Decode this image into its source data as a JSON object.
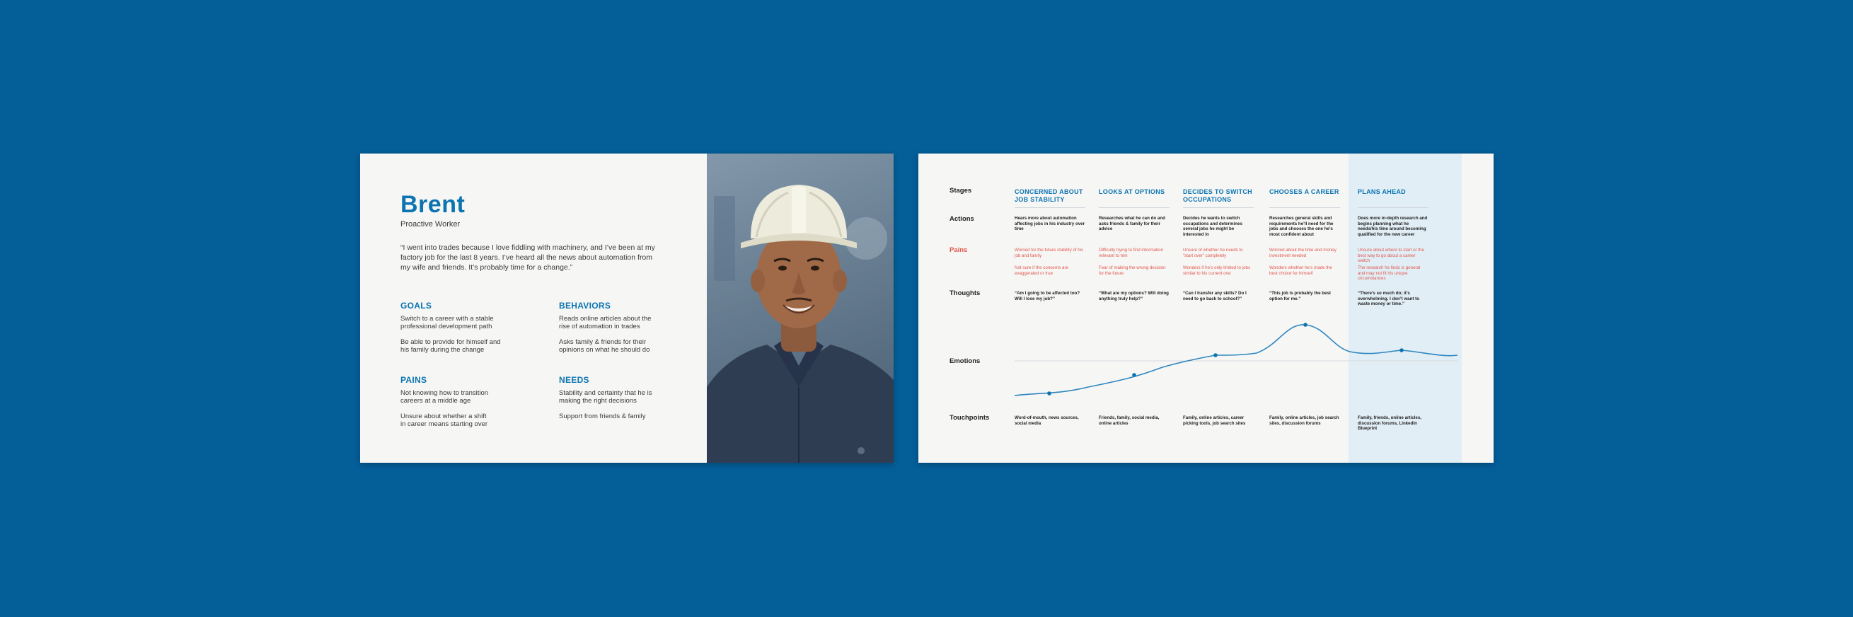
{
  "persona": {
    "name": "Brent",
    "role": "Proactive Worker",
    "quote": "“I went into trades because I love fiddling with machinery, and I’ve been at my factory job for the last 8 years. I’ve heard all the news about automation from my wife and friends. It’s probably time for a change.”",
    "goals": {
      "title": "GOALS",
      "items": [
        "Switch to a career with a stable\nprofessional development path",
        "Be able to provide for himself and\nhis family during the change"
      ]
    },
    "behaviors": {
      "title": "BEHAVIORS",
      "items": [
        "Reads online articles about the\nrise of automation in trades",
        "Asks family & friends for their\nopinions on what he should do"
      ]
    },
    "pains": {
      "title": "PAINS",
      "items": [
        "Not knowing how to transition\ncareers at a middle age",
        "Unsure about whether a shift\nin career means starting over"
      ]
    },
    "needs": {
      "title": "NEEDS",
      "items": [
        "Stability and certainty that he is\nmaking the right decisions",
        "Support from friends & family"
      ]
    },
    "photo_icon": "person-hardhat-photo"
  },
  "journey": {
    "row_labels": {
      "stages": "Stages",
      "actions": "Actions",
      "pains": "Pains",
      "thoughts": "Thoughts",
      "emotions": "Emotions",
      "touchpoints": "Touchpoints"
    },
    "highlight_color": "#e1eef6",
    "accent_color": "#0b74b1",
    "pain_color": "#e2574c",
    "stages": [
      {
        "title": "CONCERNED ABOUT JOB STABILITY",
        "action": "Hears more about automation affecting jobs in his industry over time",
        "pain1": "Worried for the future stability of his job and family",
        "pain2": "Not sure if the concerns are exaggerated or true",
        "thought": "“Am I going to be affected too? Will I lose my job?”",
        "touchpoint": "Word-of-mouth, news sources, social media"
      },
      {
        "title": "LOOKS AT OPTIONS",
        "action": "Researches what he can do and asks friends & family for their advice",
        "pain1": "Difficulty trying to find information relevant to him",
        "pain2": "Fear of making the wrong decision for the future",
        "thought": "“What are my options? Will doing anything truly help?”",
        "touchpoint": "Friends, family, social media, online articles"
      },
      {
        "title": "DECIDES TO SWITCH OCCUPATIONS",
        "action": "Decides he wants to switch occupations and determines several jobs he might be interested in",
        "pain1": "Unsure of whether he needs to “start over” completely",
        "pain2": "Wonders if he’s only limited to jobs similar to his current one",
        "thought": "“Can I transfer any skills? Do I need to go back to school?”",
        "touchpoint": "Family, online articles, career picking tools, job search sites"
      },
      {
        "title": "CHOOSES  A CAREER",
        "action": "Researches general skills and requirements he’ll need for the jobs and chooses the one he’s most confident about",
        "pain1": "Worried about the time and money investment needed",
        "pain2": "Wonders whether he’s made the best choice for himself",
        "thought": "“This job is probably the best option for me.”",
        "touchpoint": "Family, online articles, job search sites, discussion forums"
      },
      {
        "title": "PLANS AHEAD",
        "action": "Does more in-depth research and begins planning what he needs/his time around becoming qualified for the new career",
        "pain1": "Unsure about where to start or the best way to go about a career switch",
        "pain2": "The research he finds is general and may not fit his unique circumstances",
        "thought": "“There’s so much do; it’s overwhelming. I don’t want to waste money or time.”",
        "touchpoint": "Family, friends, online articles, discussion forums, LinkedIn Blueprint"
      }
    ]
  }
}
